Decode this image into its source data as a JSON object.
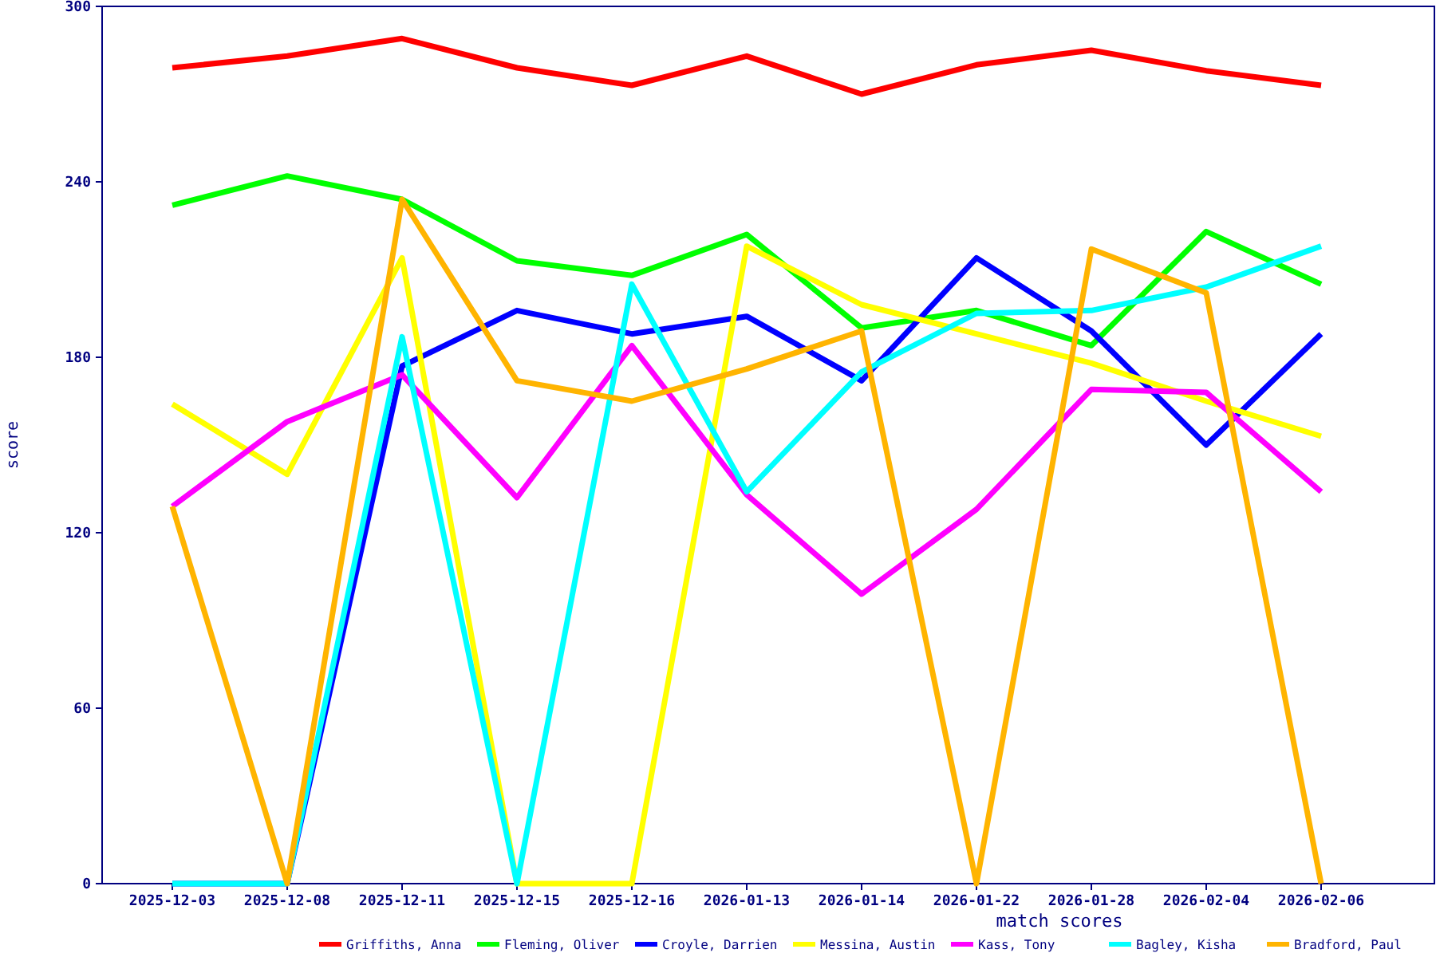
{
  "chart_data": {
    "type": "line",
    "xlabel": "match scores",
    "ylabel": "score",
    "categories": [
      "2025-12-03",
      "2025-12-08",
      "2025-12-11",
      "2025-12-15",
      "2025-12-16",
      "2026-01-13",
      "2026-01-14",
      "2026-01-22",
      "2026-01-28",
      "2026-02-04",
      "2026-02-06"
    ],
    "ylim": [
      0,
      300
    ],
    "yticks": [
      0,
      60,
      120,
      180,
      240,
      300
    ],
    "grid": false,
    "legend": "bottom",
    "marker": "none",
    "line_style": "solid",
    "series": [
      {
        "name": "Griffiths, Anna",
        "color": "#ff0000",
        "values": [
          279,
          283,
          289,
          279,
          273,
          283,
          270,
          280,
          285,
          278,
          273
        ]
      },
      {
        "name": "Fleming, Oliver",
        "color": "#00ff00",
        "values": [
          232,
          242,
          234,
          213,
          208,
          222,
          190,
          196,
          184,
          223,
          205
        ]
      },
      {
        "name": "Croyle, Darrien",
        "color": "#0000ff",
        "values": [
          0,
          0,
          177,
          196,
          188,
          194,
          172,
          214,
          189,
          150,
          188
        ]
      },
      {
        "name": "Messina, Austin",
        "color": "#ffff00",
        "values": [
          164,
          140,
          214,
          0,
          0,
          218,
          198,
          188,
          178,
          165,
          153
        ]
      },
      {
        "name": "Kass, Tony",
        "color": "#ff00ff",
        "values": [
          129,
          158,
          174,
          132,
          184,
          133,
          99,
          128,
          169,
          168,
          134
        ]
      },
      {
        "name": "Bagley, Kisha",
        "color": "#00ffff",
        "values": [
          0,
          0,
          187,
          0,
          205,
          134,
          175,
          195,
          196,
          204,
          218
        ]
      },
      {
        "name": "Bradford, Paul",
        "color": "#ffb400",
        "values": [
          129,
          0,
          234,
          172,
          165,
          176,
          189,
          0,
          217,
          202,
          0
        ]
      }
    ]
  }
}
